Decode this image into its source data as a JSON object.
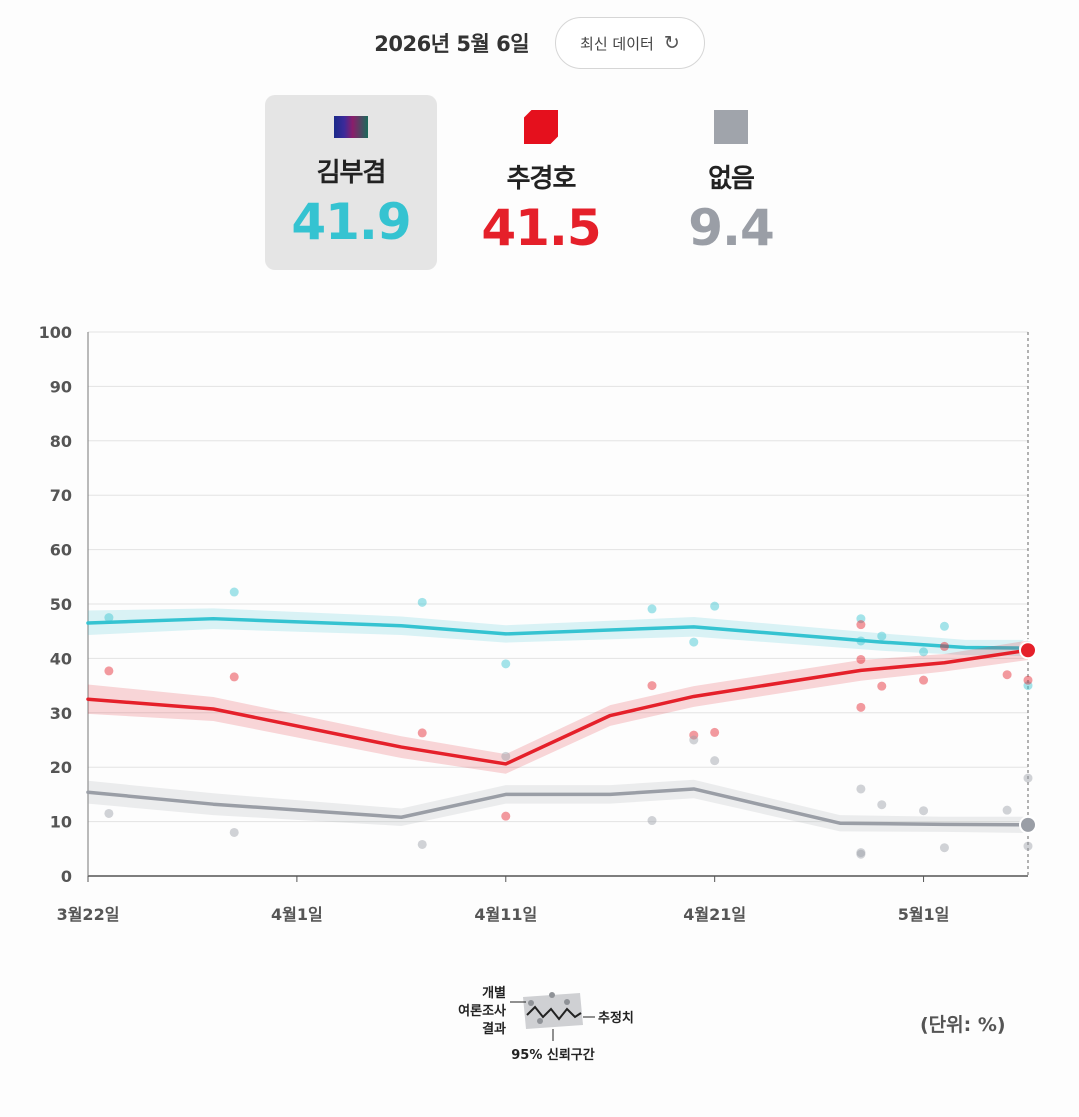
{
  "header": {
    "date": "2026년 5월 6일",
    "refresh_label": "최신 데이터",
    "refresh_icon": "refresh-icon"
  },
  "candidates": [
    {
      "name": "김부겸",
      "value": "41.9",
      "color": "#35c3d1",
      "selected": true
    },
    {
      "name": "추경호",
      "value": "41.5",
      "color": "#e5202a",
      "selected": false
    },
    {
      "name": "없음",
      "value": "9.4",
      "color": "#9a9ea6",
      "selected": false
    }
  ],
  "chart_data": {
    "type": "line",
    "ylim": [
      0,
      100
    ],
    "yticks": [
      "0",
      "10",
      "20",
      "30",
      "40",
      "50",
      "60",
      "70",
      "80",
      "90",
      "100"
    ],
    "xlim": [
      "2026-03-22",
      "2026-05-06"
    ],
    "xticks": [
      {
        "date": "2026-03-22",
        "label": "3월22일"
      },
      {
        "date": "2026-04-01",
        "label": "4월1일"
      },
      {
        "date": "2026-04-11",
        "label": "4월11일"
      },
      {
        "date": "2026-04-21",
        "label": "4월21일"
      },
      {
        "date": "2026-05-01",
        "label": "5월1일"
      }
    ],
    "grid": true,
    "series": [
      {
        "name": "김부겸",
        "color": "#35c3d1",
        "estimate": [
          [
            "2026-03-22",
            46.5
          ],
          [
            "2026-03-28",
            47.3
          ],
          [
            "2026-04-06",
            46.0
          ],
          [
            "2026-04-11",
            44.5
          ],
          [
            "2026-04-20",
            45.8
          ],
          [
            "2026-04-29",
            43.0
          ],
          [
            "2026-05-03",
            42.0
          ],
          [
            "2026-05-06",
            41.9
          ]
        ],
        "ci": [
          [
            "2026-03-22",
            44.3,
            48.8
          ],
          [
            "2026-03-28",
            45.4,
            49.2
          ],
          [
            "2026-04-06",
            44.3,
            47.7
          ],
          [
            "2026-04-11",
            42.9,
            46.1
          ],
          [
            "2026-04-20",
            44.0,
            47.6
          ],
          [
            "2026-04-29",
            41.4,
            44.6
          ],
          [
            "2026-05-03",
            40.6,
            43.4
          ],
          [
            "2026-05-06",
            40.4,
            43.4
          ]
        ],
        "polls": [
          [
            "2026-03-23",
            47.5
          ],
          [
            "2026-03-29",
            52.2
          ],
          [
            "2026-04-07",
            50.3
          ],
          [
            "2026-04-11",
            39.0
          ],
          [
            "2026-04-18",
            49.1
          ],
          [
            "2026-04-20",
            43.0
          ],
          [
            "2026-04-21",
            49.6
          ],
          [
            "2026-04-28",
            47.3
          ],
          [
            "2026-04-28",
            43.2
          ],
          [
            "2026-04-29",
            44.1
          ],
          [
            "2026-05-02",
            45.9
          ],
          [
            "2026-05-01",
            41.2
          ],
          [
            "2026-05-06",
            35.0
          ]
        ]
      },
      {
        "name": "추경호",
        "color": "#e5202a",
        "estimate": [
          [
            "2026-03-22",
            32.5
          ],
          [
            "2026-03-28",
            30.7
          ],
          [
            "2026-04-06",
            23.7
          ],
          [
            "2026-04-11",
            20.6
          ],
          [
            "2026-04-16",
            29.5
          ],
          [
            "2026-04-20",
            33.0
          ],
          [
            "2026-04-28",
            37.8
          ],
          [
            "2026-05-02",
            39.2
          ],
          [
            "2026-05-06",
            41.5
          ]
        ],
        "ci": [
          [
            "2026-03-22",
            29.8,
            35.2
          ],
          [
            "2026-03-28",
            28.5,
            32.9
          ],
          [
            "2026-04-06",
            21.7,
            25.7
          ],
          [
            "2026-04-11",
            18.8,
            22.4
          ],
          [
            "2026-04-16",
            27.6,
            31.4
          ],
          [
            "2026-04-20",
            31.1,
            34.9
          ],
          [
            "2026-04-28",
            35.9,
            39.7
          ],
          [
            "2026-05-02",
            37.6,
            40.8
          ],
          [
            "2026-05-06",
            39.7,
            43.3
          ]
        ],
        "polls": [
          [
            "2026-03-23",
            37.7
          ],
          [
            "2026-03-29",
            36.6
          ],
          [
            "2026-04-07",
            26.3
          ],
          [
            "2026-04-11",
            11.0
          ],
          [
            "2026-04-18",
            35.0
          ],
          [
            "2026-04-20",
            25.9
          ],
          [
            "2026-04-21",
            26.4
          ],
          [
            "2026-04-28",
            46.2
          ],
          [
            "2026-04-28",
            39.8
          ],
          [
            "2026-04-28",
            31.0
          ],
          [
            "2026-04-29",
            34.9
          ],
          [
            "2026-05-01",
            36.0
          ],
          [
            "2026-05-02",
            42.2
          ],
          [
            "2026-05-05",
            37.0
          ],
          [
            "2026-05-06",
            36.0
          ]
        ]
      },
      {
        "name": "없음",
        "color": "#9a9ea6",
        "estimate": [
          [
            "2026-03-22",
            15.4
          ],
          [
            "2026-03-28",
            13.2
          ],
          [
            "2026-04-06",
            10.8
          ],
          [
            "2026-04-11",
            15.0
          ],
          [
            "2026-04-16",
            15.0
          ],
          [
            "2026-04-20",
            16.0
          ],
          [
            "2026-04-27",
            9.7
          ],
          [
            "2026-05-02",
            9.5
          ],
          [
            "2026-05-06",
            9.4
          ]
        ],
        "ci": [
          [
            "2026-03-22",
            13.3,
            17.5
          ],
          [
            "2026-03-28",
            11.2,
            15.2
          ],
          [
            "2026-04-06",
            9.2,
            12.4
          ],
          [
            "2026-04-11",
            13.3,
            16.7
          ],
          [
            "2026-04-16",
            13.3,
            16.7
          ],
          [
            "2026-04-20",
            14.3,
            17.7
          ],
          [
            "2026-04-27",
            8.2,
            11.2
          ],
          [
            "2026-05-02",
            8.1,
            10.9
          ],
          [
            "2026-05-06",
            7.9,
            10.9
          ]
        ],
        "polls": [
          [
            "2026-03-23",
            11.5
          ],
          [
            "2026-03-29",
            8.0
          ],
          [
            "2026-04-07",
            5.8
          ],
          [
            "2026-04-11",
            22.0
          ],
          [
            "2026-04-18",
            10.2
          ],
          [
            "2026-04-20",
            25.0
          ],
          [
            "2026-04-21",
            21.2
          ],
          [
            "2026-04-28",
            16.0
          ],
          [
            "2026-04-28",
            4.3
          ],
          [
            "2026-04-28",
            4.0
          ],
          [
            "2026-04-29",
            13.1
          ],
          [
            "2026-05-01",
            12.0
          ],
          [
            "2026-05-02",
            5.2
          ],
          [
            "2026-05-05",
            12.1
          ],
          [
            "2026-05-06",
            18.0
          ],
          [
            "2026-05-06",
            5.5
          ]
        ]
      }
    ]
  },
  "legend": {
    "individual_label_1": "개별",
    "individual_label_2": "여론조사",
    "individual_label_3": "결과",
    "estimate_label": "추정치",
    "ci_label": "95% 신뢰구간"
  },
  "unit_label": "(단위: %)"
}
